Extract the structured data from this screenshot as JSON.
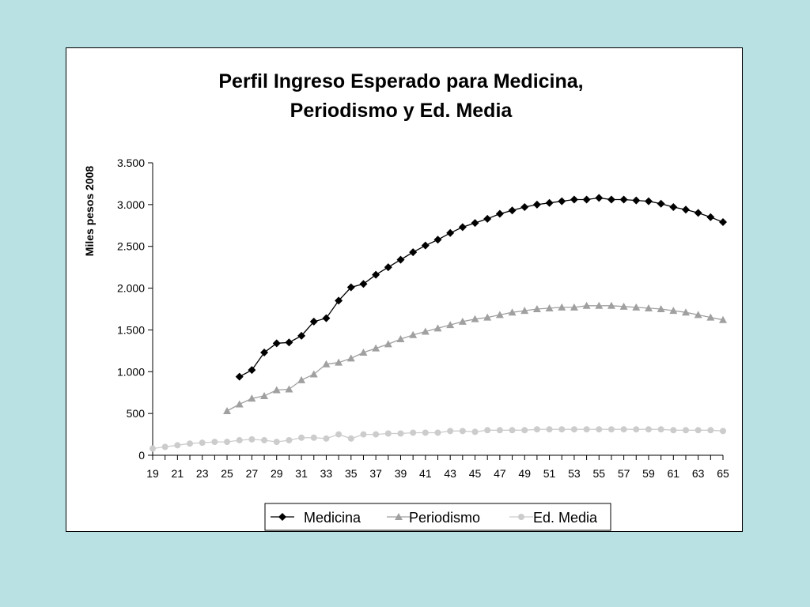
{
  "chart_data": {
    "type": "line",
    "title": [
      "Perfil Ingreso Esperado para Medicina,",
      "Periodismo y Ed. Media"
    ],
    "xlabel": "",
    "ylabel": "Miles pesos 2008",
    "xlim": [
      19,
      65
    ],
    "ylim": [
      0,
      3500
    ],
    "y_ticks": [
      0,
      500,
      1000,
      1500,
      2000,
      2500,
      3000,
      3500
    ],
    "y_tick_labels": [
      "0",
      "500",
      "1.000",
      "1.500",
      "2.000",
      "2.500",
      "3.000",
      "3.500"
    ],
    "x_ticks": [
      19,
      21,
      23,
      25,
      27,
      29,
      31,
      33,
      35,
      37,
      39,
      41,
      43,
      45,
      47,
      49,
      51,
      53,
      55,
      57,
      59,
      61,
      63,
      65
    ],
    "x_tick_labels": [
      "19",
      "21",
      "23",
      "25",
      "27",
      "29",
      "31",
      "33",
      "35",
      "37",
      "39",
      "41",
      "43",
      "45",
      "47",
      "49",
      "51",
      "53",
      "55",
      "57",
      "59",
      "61",
      "63",
      "65"
    ],
    "grid": false,
    "legend_position": "bottom",
    "series": [
      {
        "name": "Medicina",
        "color": "#000000",
        "marker": "diamond",
        "x": [
          26,
          27,
          28,
          29,
          30,
          31,
          32,
          33,
          34,
          35,
          36,
          37,
          38,
          39,
          40,
          41,
          42,
          43,
          44,
          45,
          46,
          47,
          48,
          49,
          50,
          51,
          52,
          53,
          54,
          55,
          56,
          57,
          58,
          59,
          60,
          61,
          62,
          63,
          64,
          65
        ],
        "values": [
          940,
          1020,
          1230,
          1340,
          1350,
          1430,
          1600,
          1640,
          1850,
          2010,
          2050,
          2160,
          2250,
          2340,
          2430,
          2510,
          2580,
          2660,
          2730,
          2780,
          2830,
          2890,
          2930,
          2970,
          3000,
          3020,
          3040,
          3060,
          3060,
          3080,
          3060,
          3060,
          3050,
          3040,
          3010,
          2970,
          2940,
          2900,
          2850,
          2790
        ]
      },
      {
        "name": "Periodismo",
        "color": "#a0a0a0",
        "marker": "triangle",
        "x": [
          25,
          26,
          27,
          28,
          29,
          30,
          31,
          32,
          33,
          34,
          35,
          36,
          37,
          38,
          39,
          40,
          41,
          42,
          43,
          44,
          45,
          46,
          47,
          48,
          49,
          50,
          51,
          52,
          53,
          54,
          55,
          56,
          57,
          58,
          59,
          60,
          61,
          62,
          63,
          64,
          65
        ],
        "values": [
          530,
          610,
          680,
          710,
          780,
          790,
          900,
          970,
          1090,
          1110,
          1160,
          1230,
          1280,
          1330,
          1390,
          1440,
          1480,
          1520,
          1560,
          1600,
          1630,
          1650,
          1680,
          1710,
          1730,
          1750,
          1760,
          1770,
          1770,
          1790,
          1790,
          1790,
          1780,
          1770,
          1760,
          1750,
          1730,
          1710,
          1680,
          1650,
          1620
        ]
      },
      {
        "name": "Ed. Media",
        "color": "#cccccc",
        "marker": "circle",
        "x": [
          19,
          20,
          21,
          22,
          23,
          24,
          25,
          26,
          27,
          28,
          29,
          30,
          31,
          32,
          33,
          34,
          35,
          36,
          37,
          38,
          39,
          40,
          41,
          42,
          43,
          44,
          45,
          46,
          47,
          48,
          49,
          50,
          51,
          52,
          53,
          54,
          55,
          56,
          57,
          58,
          59,
          60,
          61,
          62,
          63,
          64,
          65
        ],
        "values": [
          80,
          100,
          120,
          140,
          150,
          160,
          160,
          180,
          190,
          180,
          160,
          180,
          210,
          210,
          200,
          250,
          200,
          250,
          250,
          260,
          260,
          270,
          270,
          270,
          290,
          290,
          280,
          300,
          300,
          300,
          300,
          310,
          310,
          310,
          310,
          310,
          310,
          310,
          310,
          310,
          310,
          310,
          300,
          300,
          300,
          300,
          290
        ]
      }
    ]
  }
}
